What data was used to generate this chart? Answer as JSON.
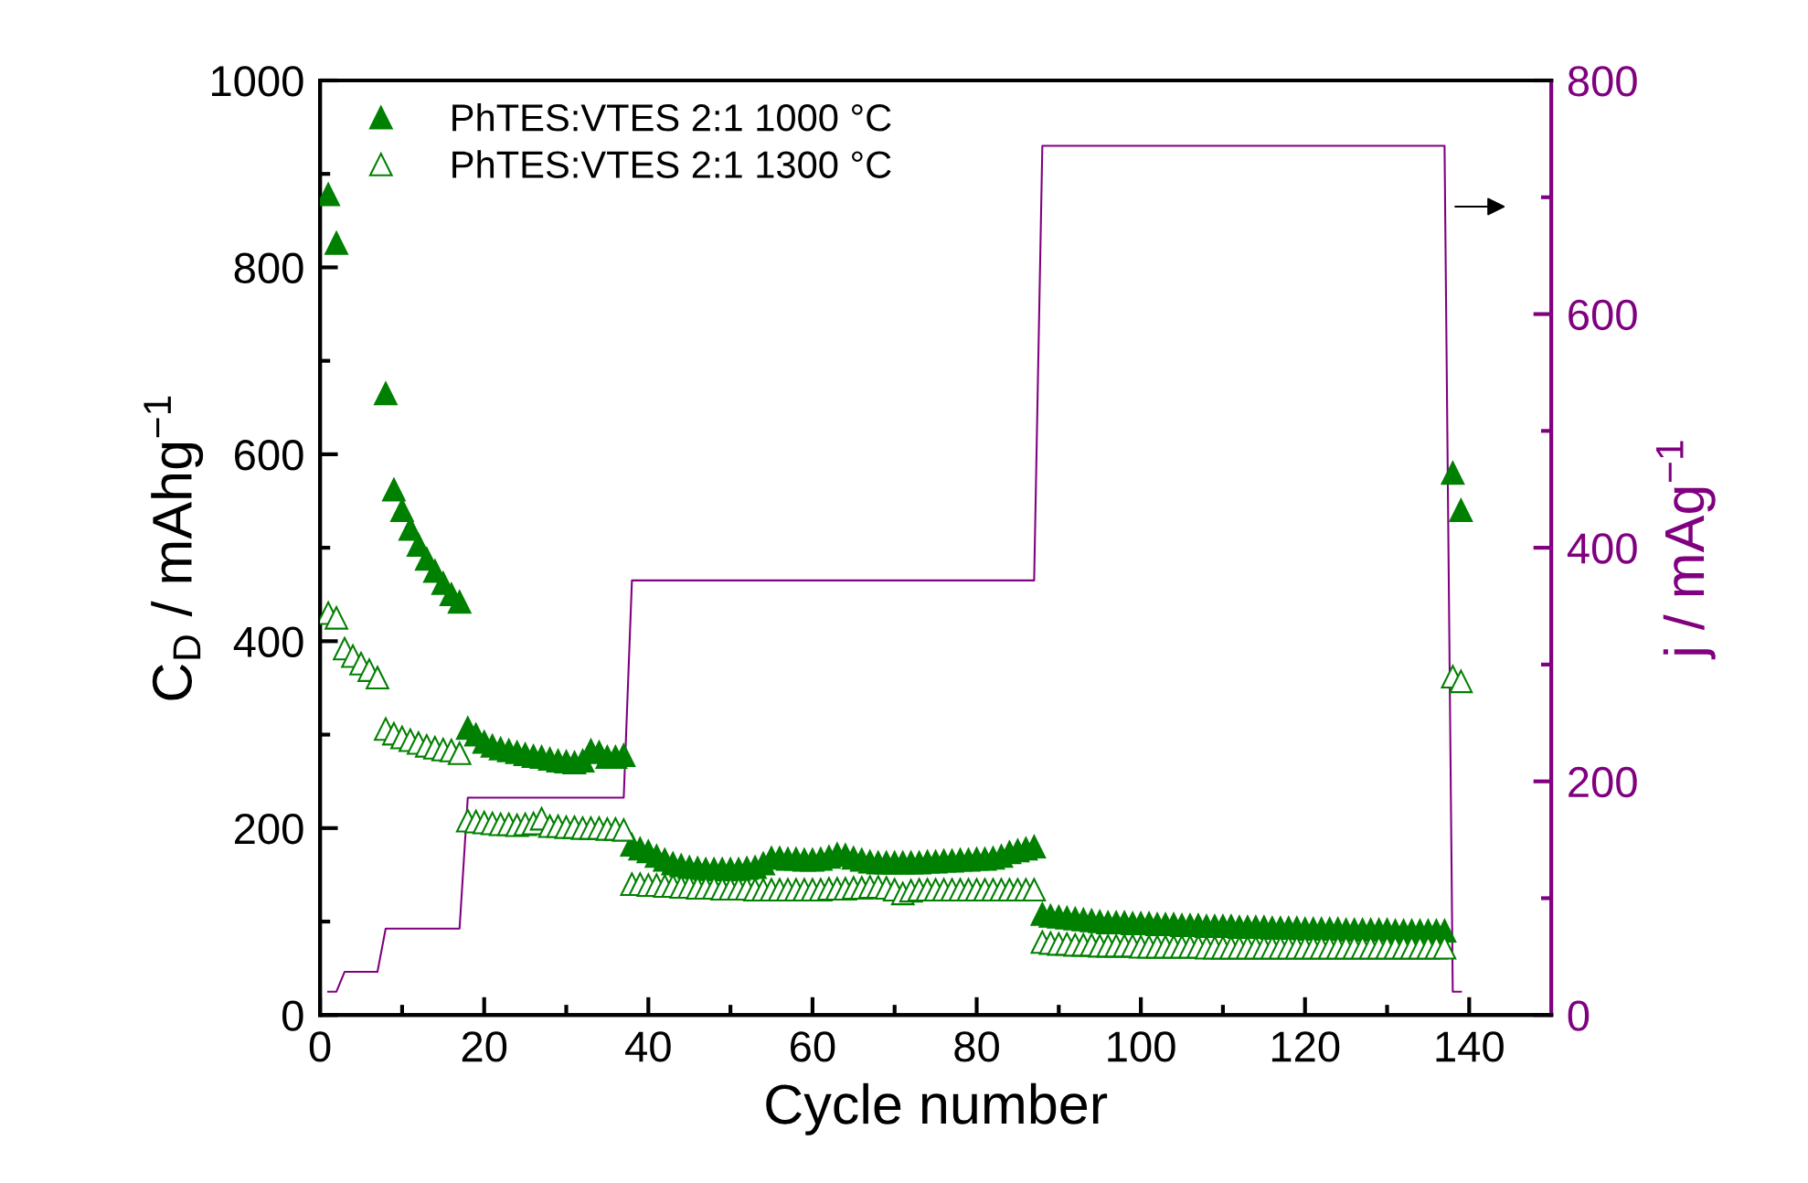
{
  "chart_data": {
    "type": "scatter",
    "xlabel": "Cycle number",
    "ylabel": "C$_{D}$ / mAhg$^{−1}$",
    "y2label": "j / mAg$^{−1}$",
    "xlim": [
      0,
      150
    ],
    "ylim": [
      0,
      1000
    ],
    "y2lim": [
      0,
      800
    ],
    "xticks": [
      0,
      {
        "value": 10,
        "label": null
      },
      20,
      {
        "value": 30,
        "label": null
      },
      40,
      {
        "value": 50,
        "label": null
      },
      60,
      {
        "value": 70,
        "label": null
      },
      80,
      {
        "value": 90,
        "label": null
      },
      100,
      {
        "value": 110,
        "label": null
      },
      120,
      {
        "value": 130,
        "label": null
      },
      140
    ],
    "yticks": [
      0,
      {
        "value": 100,
        "label": null
      },
      200,
      {
        "value": 300,
        "label": null
      },
      400,
      {
        "value": 500,
        "label": null
      },
      600,
      {
        "value": 700,
        "label": null
      },
      800,
      {
        "value": 900,
        "label": null
      },
      1000
    ],
    "y2ticks": [
      0,
      {
        "value": 100,
        "label": null
      },
      200,
      {
        "value": 300,
        "label": null
      },
      400,
      {
        "value": 500,
        "label": null
      },
      600,
      {
        "value": 700,
        "label": null
      },
      800
    ],
    "legend": "top left",
    "grid": false,
    "series": [
      {
        "name": "PhTES:VTES 2:1 1000 °C",
        "color": "#008000",
        "marker": "triangle",
        "x": [
          1,
          2,
          8,
          9,
          10,
          11,
          12,
          13,
          14,
          15,
          16,
          17,
          18,
          19,
          20,
          21,
          22,
          23,
          24,
          25,
          26,
          27,
          28,
          29,
          30,
          31,
          32,
          33,
          34,
          35,
          36,
          37,
          38,
          39,
          40,
          41,
          42,
          43,
          44,
          45,
          46,
          47,
          48,
          49,
          50,
          51,
          52,
          53,
          54,
          55,
          56,
          57,
          58,
          59,
          60,
          61,
          62,
          63,
          64,
          65,
          66,
          67,
          68,
          69,
          70,
          71,
          72,
          73,
          74,
          75,
          76,
          77,
          78,
          79,
          80,
          81,
          82,
          83,
          84,
          85,
          86,
          87,
          88,
          89,
          90,
          91,
          92,
          93,
          94,
          95,
          96,
          97,
          98,
          99,
          100,
          101,
          102,
          103,
          104,
          105,
          106,
          107,
          108,
          109,
          110,
          111,
          112,
          113,
          114,
          115,
          116,
          117,
          118,
          119,
          120,
          121,
          122,
          123,
          124,
          125,
          126,
          127,
          128,
          129,
          130,
          131,
          132,
          133,
          134,
          135,
          136,
          137,
          138,
          139
        ],
        "values": [
          878,
          826,
          665,
          562,
          540,
          520,
          503,
          488,
          475,
          462,
          450,
          442,
          307,
          300,
          292,
          288,
          285,
          283,
          281,
          279,
          277,
          276,
          274,
          272,
          271,
          270,
          272,
          283,
          281,
          276,
          276,
          278,
          182,
          178,
          175,
          170,
          166,
          162,
          160,
          158,
          157,
          156,
          156,
          156,
          156,
          156,
          157,
          158,
          162,
          168,
          168,
          167,
          167,
          166,
          166,
          167,
          169,
          172,
          171,
          168,
          166,
          164,
          163,
          163,
          163,
          163,
          163,
          163,
          164,
          164,
          165,
          165,
          166,
          166,
          167,
          167,
          168,
          170,
          174,
          176,
          178,
          180,
          108,
          106,
          105,
          104,
          103,
          102,
          101,
          100,
          99,
          99,
          99,
          98,
          98,
          98,
          97,
          97,
          97,
          96,
          96,
          96,
          95,
          95,
          95,
          95,
          94,
          94,
          94,
          94,
          93,
          93,
          93,
          93,
          92,
          92,
          92,
          92,
          92,
          91,
          91,
          91,
          91,
          91,
          91,
          90,
          90,
          90,
          90,
          90,
          90,
          90,
          580,
          540
        ]
      },
      {
        "name": "PhTES:VTES 2:1 1300 °C",
        "color": "#008000",
        "marker": "triangle",
        "x": [
          1,
          2,
          3,
          4,
          5,
          6,
          7,
          8,
          9,
          10,
          11,
          12,
          13,
          14,
          15,
          16,
          17,
          18,
          19,
          20,
          21,
          22,
          23,
          24,
          25,
          26,
          27,
          28,
          29,
          30,
          31,
          32,
          33,
          34,
          35,
          36,
          37,
          38,
          39,
          40,
          41,
          42,
          43,
          44,
          45,
          46,
          47,
          48,
          49,
          50,
          51,
          52,
          53,
          54,
          55,
          56,
          57,
          58,
          59,
          60,
          61,
          62,
          63,
          64,
          65,
          66,
          67,
          68,
          69,
          70,
          71,
          72,
          73,
          74,
          75,
          76,
          77,
          78,
          79,
          80,
          81,
          82,
          83,
          84,
          85,
          86,
          87,
          88,
          89,
          90,
          91,
          92,
          93,
          94,
          95,
          96,
          97,
          98,
          99,
          100,
          101,
          102,
          103,
          104,
          105,
          106,
          107,
          108,
          109,
          110,
          111,
          112,
          113,
          114,
          115,
          116,
          117,
          118,
          119,
          120,
          121,
          122,
          123,
          124,
          125,
          126,
          127,
          128,
          129,
          130,
          131,
          132,
          133,
          134,
          135,
          136,
          137,
          138,
          139
        ],
        "values": [
          430,
          425,
          392,
          384,
          376,
          369,
          361,
          306,
          301,
          297,
          294,
          291,
          288,
          286,
          284,
          283,
          280,
          208,
          207,
          206,
          205,
          204,
          204,
          203,
          204,
          205,
          210,
          202,
          202,
          201,
          201,
          200,
          200,
          200,
          199,
          199,
          198,
          140,
          140,
          139,
          139,
          138,
          138,
          137,
          137,
          136,
          136,
          136,
          135,
          135,
          135,
          135,
          134,
          134,
          134,
          134,
          134,
          134,
          134,
          134,
          134,
          135,
          135,
          135,
          136,
          136,
          137,
          137,
          136,
          134,
          130,
          133,
          134,
          134,
          134,
          134,
          134,
          134,
          134,
          134,
          134,
          134,
          134,
          134,
          134,
          134,
          134,
          78,
          77,
          76,
          76,
          75,
          75,
          75,
          74,
          74,
          74,
          74,
          74,
          73,
          73,
          73,
          73,
          73,
          73,
          73,
          73,
          72,
          72,
          72,
          72,
          72,
          72,
          72,
          72,
          72,
          72,
          72,
          72,
          72,
          72,
          72,
          72,
          72,
          72,
          72,
          72,
          72,
          72,
          72,
          72,
          72,
          72,
          72,
          72,
          72,
          72,
          362,
          357
        ]
      },
      {
        "type": "line",
        "axis": "y2",
        "color": "#800080",
        "marker": "none",
        "x": [
          1,
          2,
          3,
          7,
          8,
          17,
          18,
          37,
          38,
          87,
          88,
          137,
          138,
          139
        ],
        "values": [
          20,
          20,
          37,
          37,
          74,
          74,
          186,
          186,
          372,
          372,
          744,
          744,
          20,
          20
        ]
      }
    ]
  }
}
